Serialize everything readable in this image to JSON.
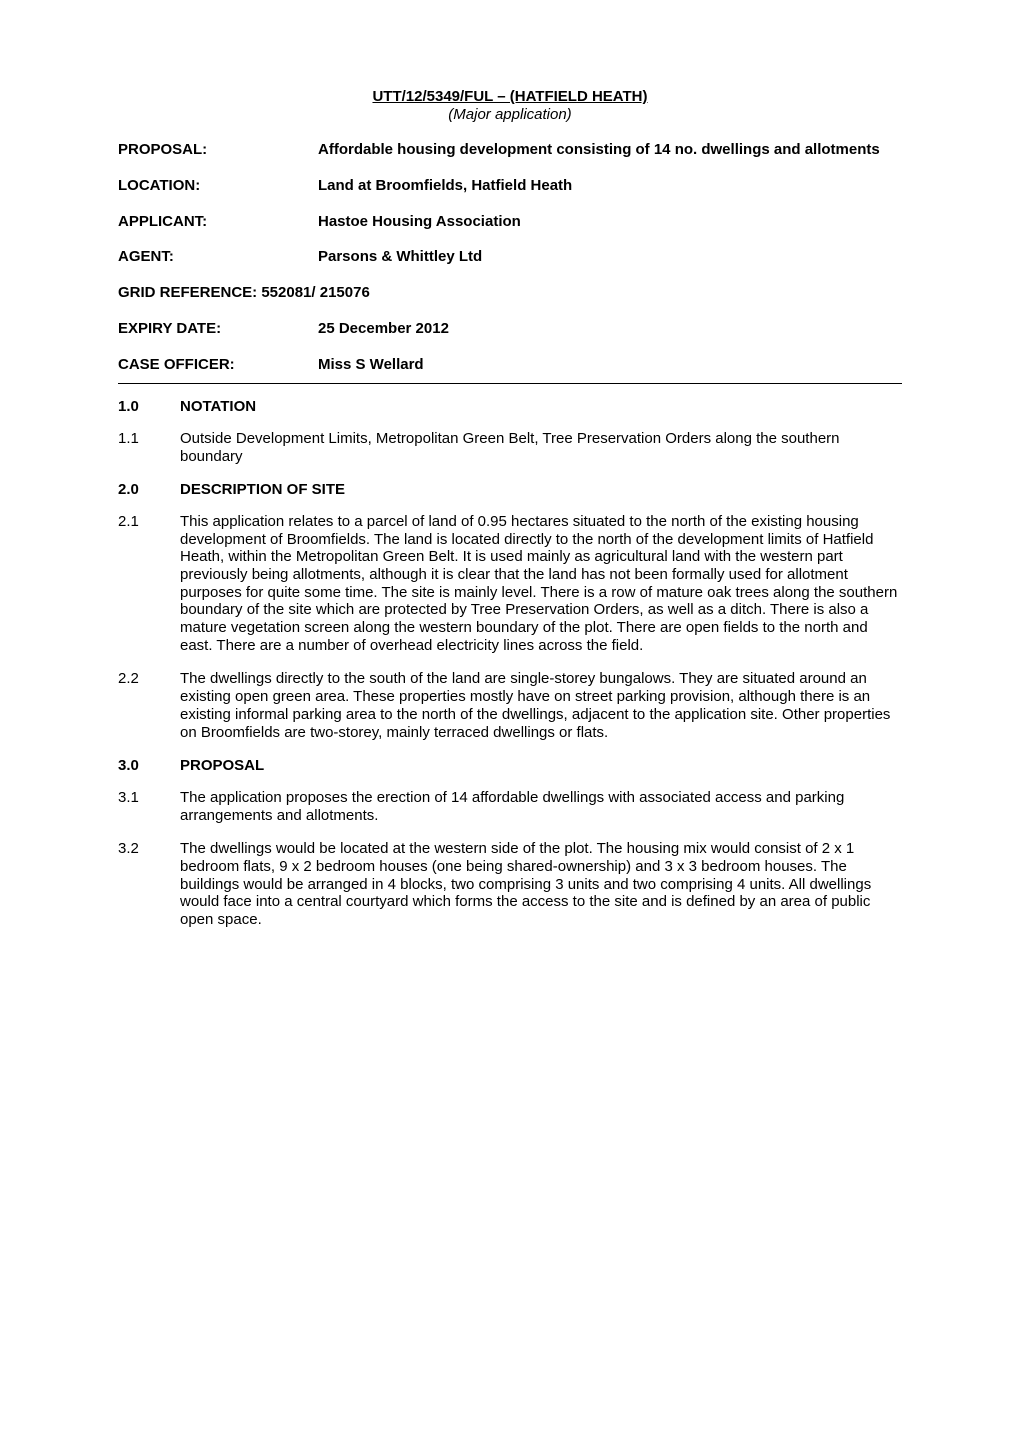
{
  "header": {
    "title_line": "UTT/12/5349/FUL – (HATFIELD HEATH)",
    "subtitle_line": "(Major application)"
  },
  "meta": {
    "proposal": {
      "label": "PROPOSAL:",
      "value": "Affordable housing development consisting of 14 no. dwellings and allotments"
    },
    "location": {
      "label": "LOCATION:",
      "value": "Land at Broomfields, Hatfield Heath"
    },
    "applicant": {
      "label": "APPLICANT:",
      "value": "Hastoe Housing Association"
    },
    "agent": {
      "label": "AGENT:",
      "value": "Parsons & Whittley Ltd"
    },
    "grid_ref": {
      "line": "GRID REFERENCE: 552081/ 215076"
    },
    "expiry": {
      "label": "EXPIRY DATE:",
      "value": "25 December 2012"
    },
    "officer": {
      "label": "CASE OFFICER:",
      "value": "Miss S Wellard"
    }
  },
  "sections": {
    "s1": {
      "num": "1.0",
      "title": "NOTATION",
      "p1": {
        "num": "1.1",
        "text": "Outside Development Limits, Metropolitan Green Belt, Tree Preservation Orders along the southern boundary"
      }
    },
    "s2": {
      "num": "2.0",
      "title": "DESCRIPTION OF SITE",
      "p1": {
        "num": "2.1",
        "text": "This application relates to a parcel of land of 0.95 hectares situated to the north of the existing housing development of Broomfields. The land is located directly to the north of the development limits of Hatfield Heath, within the Metropolitan Green Belt. It is used mainly as agricultural land with the western part previously being allotments, although it is clear that the land has not been formally used for allotment purposes for quite some time. The site is mainly level. There is a row of mature oak trees along the southern boundary of the site which are protected by Tree Preservation Orders, as well as a ditch. There is also a mature vegetation screen along the western boundary of the plot. There are open fields to the north and east. There are a number of overhead electricity lines across the field."
      },
      "p2": {
        "num": "2.2",
        "text": "The dwellings directly to the south of the land are single-storey bungalows. They are situated around an existing open green area. These properties mostly have on street parking provision, although there is an existing informal parking area to the north of the dwellings, adjacent to the application site. Other properties on Broomfields are two-storey, mainly terraced dwellings or flats."
      }
    },
    "s3": {
      "num": "3.0",
      "title": "PROPOSAL",
      "p1": {
        "num": "3.1",
        "text": "The application proposes the erection of 14 affordable dwellings with associated access and parking arrangements and allotments."
      },
      "p2": {
        "num": "3.2",
        "text": "The dwellings would be located at the western side of the plot. The housing mix would consist of 2 x 1 bedroom flats, 9 x 2 bedroom houses (one being shared-ownership) and 3 x 3 bedroom houses. The buildings would be arranged in 4 blocks, two comprising 3 units and two comprising 4 units. All dwellings would face into a central courtyard which forms the access to the site and is defined by an area of public open space."
      }
    }
  }
}
